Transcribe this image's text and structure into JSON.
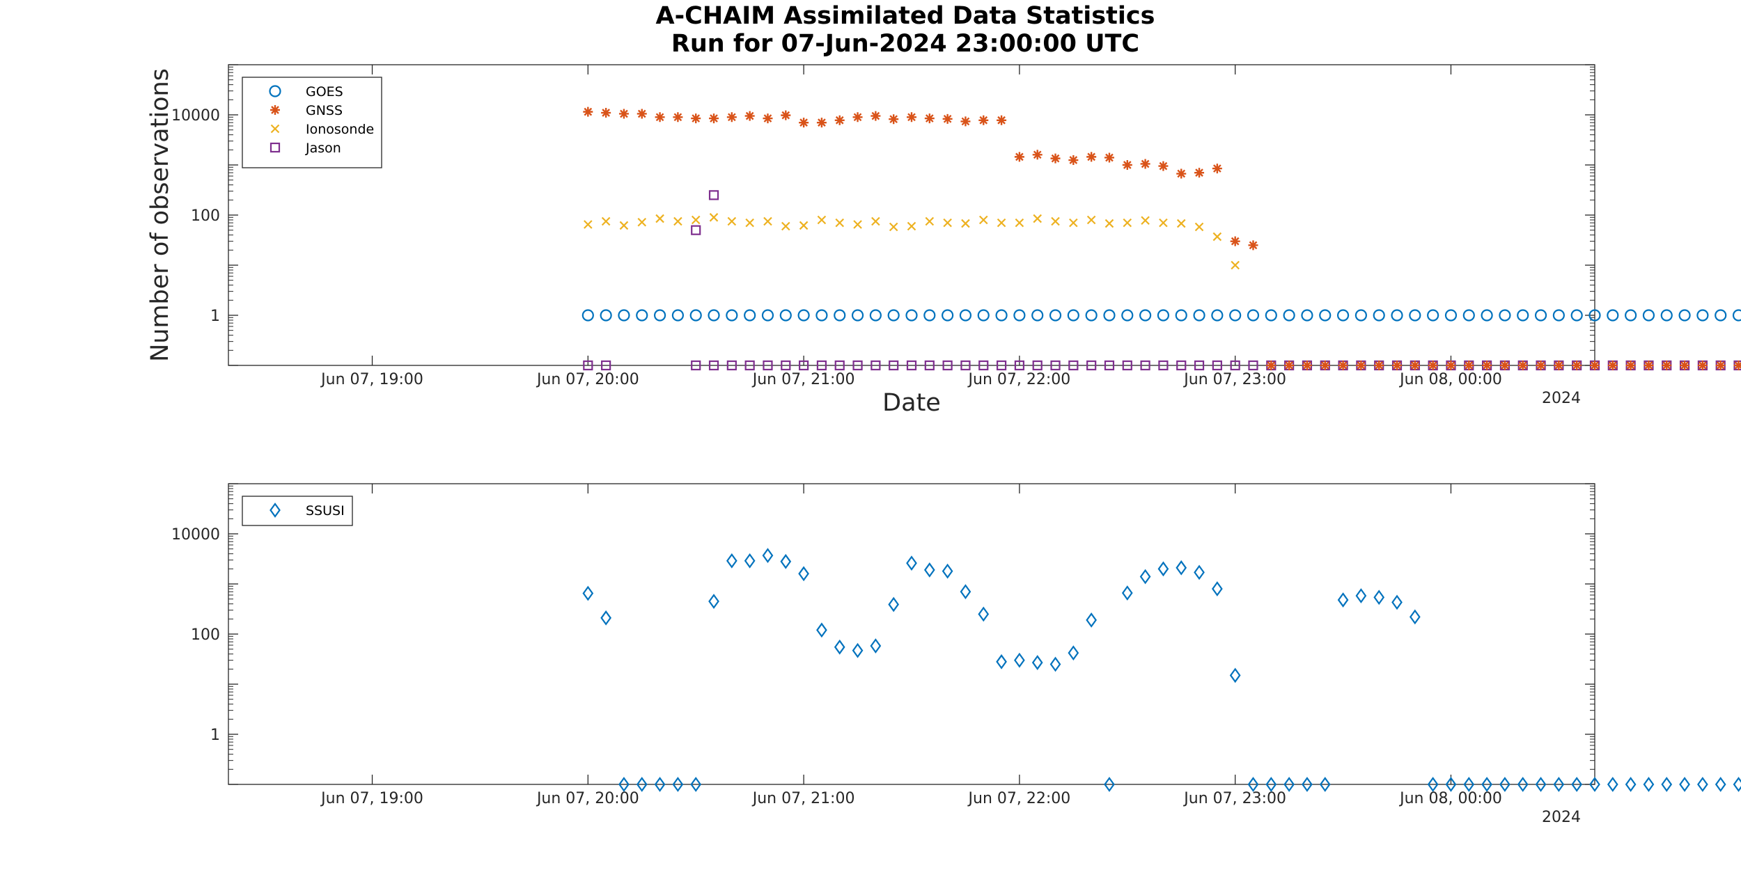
{
  "title_line1": "A-CHAIM Assimilated Data Statistics",
  "title_line2": "Run for 07-Jun-2024 23:00:00 UTC",
  "colors": {
    "goes": "#0072BD",
    "gnss": "#D95319",
    "ionosonde": "#EDB120",
    "jason": "#7E2F8E",
    "ssusi": "#0072BD"
  },
  "chart_data": [
    {
      "type": "scatter",
      "title": "A-CHAIM Assimilated Data Statistics / Run for 07-Jun-2024 23:00:00 UTC",
      "xlabel": "Date",
      "ylabel": "Number of observations",
      "yscale": "log",
      "ylim": [
        0.1,
        100000
      ],
      "xlim": [
        "2024-06-07 18:20",
        "2024-06-08 00:40"
      ],
      "x_tick_labels": [
        "Jun 07, 19:00",
        "Jun 07, 20:00",
        "Jun 07, 21:00",
        "Jun 07, 22:00",
        "Jun 07, 23:00",
        "Jun 08, 00:00"
      ],
      "x_secondary_label": "2024",
      "y_tick_labels": [
        "1",
        "100",
        "10000"
      ],
      "legend_position": "top-left",
      "x_start": "2024-06-07 20:00",
      "x_step_minutes": 5,
      "series": [
        {
          "name": "GOES",
          "marker": "circle",
          "color_key": "goes",
          "values": [
            1,
            1,
            1,
            1,
            1,
            1,
            1,
            1,
            1,
            1,
            1,
            1,
            1,
            1,
            1,
            1,
            1,
            1,
            1,
            1,
            1,
            1,
            1,
            1,
            1,
            1,
            1,
            1,
            1,
            1,
            1,
            1,
            1,
            1,
            1,
            1,
            1,
            1,
            1,
            1,
            1,
            1,
            1,
            1,
            1,
            1,
            1,
            1,
            1,
            1,
            1,
            1,
            1,
            1,
            1,
            1,
            1,
            1,
            1,
            1,
            1,
            1,
            1,
            1,
            1,
            1,
            1,
            1,
            1,
            1,
            1,
            1,
            1,
            1,
            1,
            1,
            1,
            1,
            1,
            1,
            1
          ]
        },
        {
          "name": "GNSS",
          "marker": "asterisk",
          "color_key": "gnss",
          "values": [
            11500,
            11000,
            10500,
            10500,
            9000,
            9000,
            8500,
            8500,
            9000,
            9500,
            8500,
            9800,
            7000,
            7000,
            7800,
            9000,
            9500,
            8200,
            9000,
            8500,
            8300,
            7400,
            7800,
            7800,
            1450,
            1600,
            1350,
            1250,
            1450,
            1400,
            1000,
            1050,
            950,
            670,
            700,
            850,
            30,
            25
          ]
        },
        {
          "name": "Ionosonde",
          "marker": "x",
          "color_key": "ionosonde",
          "values": [
            65,
            75,
            62,
            72,
            85,
            75,
            80,
            90,
            75,
            70,
            75,
            60,
            62,
            80,
            70,
            65,
            75,
            58,
            60,
            75,
            70,
            68,
            80,
            70,
            70,
            85,
            75,
            70,
            80,
            68,
            70,
            78,
            70,
            68,
            58,
            37,
            10
          ]
        },
        {
          "name": "Jason",
          "start_index": 6,
          "marker": "square",
          "color_key": "jason",
          "values": [
            50,
            250
          ]
        }
      ],
      "zero_markers": [
        {
          "name": "Jason",
          "from_index": 0,
          "to_index": 79,
          "skip_indices": [
            2,
            3,
            4,
            5
          ]
        },
        {
          "name": "GNSS",
          "from_index": 38,
          "to_index": 79,
          "skip_indices": []
        }
      ]
    },
    {
      "type": "scatter",
      "yscale": "log",
      "ylim": [
        0.1,
        100000
      ],
      "xlim": [
        "2024-06-07 18:20",
        "2024-06-08 00:40"
      ],
      "x_tick_labels": [
        "Jun 07, 19:00",
        "Jun 07, 20:00",
        "Jun 07, 21:00",
        "Jun 07, 22:00",
        "Jun 07, 23:00",
        "Jun 08, 00:00"
      ],
      "x_secondary_label": "2024",
      "y_tick_labels": [
        "1",
        "100",
        "10000"
      ],
      "legend_position": "top-left",
      "x_start": "2024-06-07 20:00",
      "x_step_minutes": 5,
      "series": [
        {
          "name": "SSUSI",
          "marker": "diamond",
          "color_key": "ssusi",
          "values": [
            650,
            210,
            0,
            0,
            0,
            0,
            0,
            450,
            2900,
            2900,
            3700,
            2800,
            1600,
            120,
            55,
            47,
            58,
            390,
            2600,
            1900,
            1800,
            700,
            250,
            28,
            30,
            27,
            25,
            42,
            190,
            0,
            660,
            1400,
            2000,
            2100,
            1700,
            800,
            15,
            0,
            0,
            0,
            0,
            0,
            480,
            580,
            540,
            430,
            220,
            0,
            0,
            0,
            0,
            0,
            0,
            0,
            0,
            0,
            0,
            0,
            0,
            0,
            0,
            0,
            0,
            0,
            0,
            0,
            0,
            0,
            0,
            0,
            0,
            0,
            0,
            0,
            0,
            0,
            0,
            0,
            0,
            0,
            0
          ]
        }
      ]
    }
  ]
}
